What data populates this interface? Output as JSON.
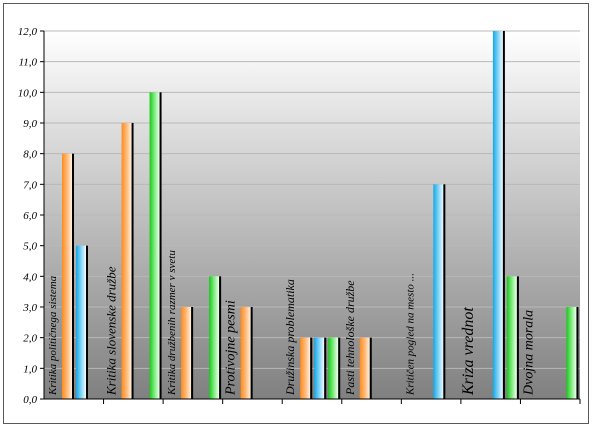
{
  "chart_data": {
    "type": "bar",
    "categories": [
      "Kritika političnega sistema",
      "Kritika slovenske družbe",
      "Kritika družbenih razmer v svetu",
      "Protivojne pesmi",
      "Družinska problematika",
      "Pasti tehnološke družbe",
      "Kritičen pogled na mesto ...",
      "Kriza vrednot",
      "Dvojna morala"
    ],
    "series": [
      {
        "values": [
          8,
          9,
          3,
          3,
          2,
          2,
          0,
          0,
          0
        ]
      },
      {
        "values": [
          5,
          0,
          0,
          0,
          2,
          0,
          7,
          12,
          0
        ]
      },
      {
        "values": [
          0,
          10,
          4,
          0,
          2,
          0,
          0,
          4,
          3
        ]
      }
    ],
    "ylim": [
      0,
      12
    ],
    "yticks": [
      "0,0",
      "1,0",
      "2,0",
      "3,0",
      "4,0",
      "5,0",
      "6,0",
      "7,0",
      "8,0",
      "9,0",
      "10,0",
      "11,0",
      "12,0"
    ],
    "grid": true,
    "colors": {
      "orange": [
        "#ff8c1a",
        "#ffb878",
        "#fff1e0"
      ],
      "blue": [
        "#11a8e8",
        "#7fd2f4",
        "#f0fbff"
      ],
      "green": [
        "#18c818",
        "#80ec80",
        "#f0fff0"
      ],
      "background_top": "#ffffff",
      "background_bottom": "#808080"
    }
  }
}
